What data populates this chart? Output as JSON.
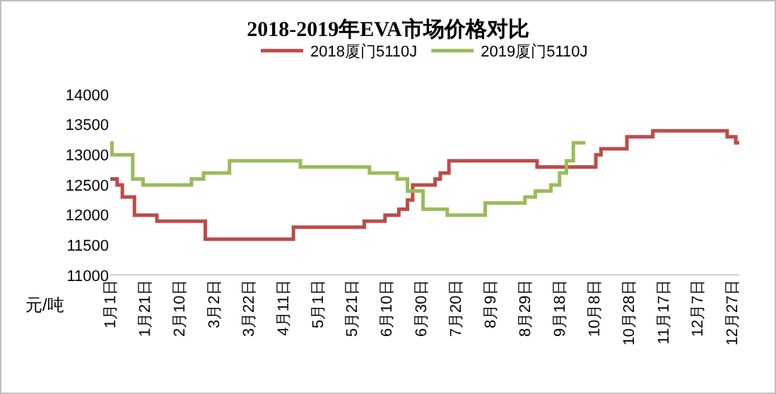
{
  "chart_data": {
    "type": "step",
    "title": "2018-2019年EVA市场价格对比",
    "ylabel": "元/吨",
    "legend": "top",
    "grid": false,
    "marker": "none",
    "line_style": "solid",
    "xlim": [
      "--01-01",
      "--12-31"
    ],
    "xticks": [
      {
        "value": "--01-01",
        "label": "1月1日"
      },
      {
        "value": "--01-21",
        "label": "1月21日"
      },
      {
        "value": "--02-10",
        "label": "2月10日"
      },
      {
        "value": "--03-02",
        "label": "3月2日"
      },
      {
        "value": "--03-22",
        "label": "3月22日"
      },
      {
        "value": "--04-11",
        "label": "4月11日"
      },
      {
        "value": "--05-01",
        "label": "5月1日"
      },
      {
        "value": "--05-21",
        "label": "5月21日"
      },
      {
        "value": "--06-10",
        "label": "6月10日"
      },
      {
        "value": "--06-30",
        "label": "6月30日"
      },
      {
        "value": "--07-20",
        "label": "7月20日"
      },
      {
        "value": "--08-09",
        "label": "8月9日"
      },
      {
        "value": "--08-29",
        "label": "8月29日"
      },
      {
        "value": "--09-18",
        "label": "9月18日"
      },
      {
        "value": "--10-08",
        "label": "10月8日"
      },
      {
        "value": "--10-28",
        "label": "10月28日"
      },
      {
        "value": "--11-17",
        "label": "11月17日"
      },
      {
        "value": "--12-07",
        "label": "12月7日"
      },
      {
        "value": "--12-27",
        "label": "12月27日"
      }
    ],
    "ylim": [
      11000,
      14000
    ],
    "yticks": [
      11000,
      11500,
      12000,
      12500,
      13000,
      13500,
      14000
    ],
    "series": [
      {
        "name": "2018厦门5110J",
        "color": "#be4b48",
        "x": [
          "--01-01",
          "--01-05",
          "--01-08",
          "--01-15",
          "--01-28",
          "--02-25",
          "--04-17",
          "--05-28",
          "--06-09",
          "--06-17",
          "--06-22",
          "--06-25",
          "--07-08",
          "--07-11",
          "--07-16",
          "--09-05",
          "--10-09",
          "--10-12",
          "--10-27",
          "--11-11",
          "--12-24",
          "--12-29",
          "--12-31"
        ],
        "values": [
          12600,
          12500,
          12300,
          12000,
          11900,
          11600,
          11800,
          11900,
          12000,
          12100,
          12250,
          12500,
          12600,
          12700,
          12900,
          12800,
          13000,
          13100,
          13300,
          13400,
          13300,
          13200,
          13200
        ]
      },
      {
        "name": "2019厦门5110J",
        "color": "#9bbb59",
        "x": [
          "--01-01",
          "--01-02",
          "--01-14",
          "--01-20",
          "--02-17",
          "--02-24",
          "--03-11",
          "--04-21",
          "--05-31",
          "--06-16",
          "--06-22",
          "--07-01",
          "--07-15",
          "--08-06",
          "--08-29",
          "--09-04",
          "--09-13",
          "--09-18",
          "--09-22",
          "--09-26",
          "--10-03"
        ],
        "values": [
          13200,
          13000,
          12600,
          12500,
          12600,
          12700,
          12900,
          12800,
          12700,
          12600,
          12400,
          12100,
          12000,
          12200,
          12300,
          12400,
          12500,
          12700,
          12900,
          13200,
          13200
        ]
      }
    ]
  }
}
